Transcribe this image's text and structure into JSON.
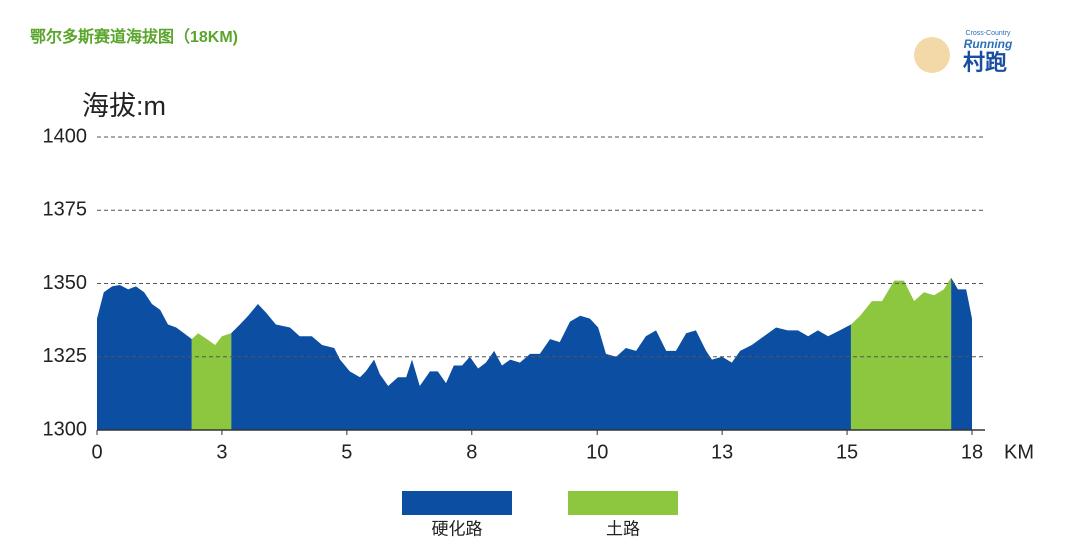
{
  "chart_data": {
    "type": "area",
    "title": "鄂尔多斯赛道海拔图（18KM)",
    "y_label": "海拔:m",
    "x_label": "KM",
    "logo": {
      "small_text": "Cross-Country",
      "brand": "Running",
      "name": "村跑"
    },
    "x": [
      0,
      0.14,
      0.31,
      0.47,
      0.64,
      0.8,
      0.97,
      1.13,
      1.3,
      1.46,
      1.63,
      1.79,
      1.95,
      2.08,
      2.26,
      2.43,
      2.57,
      2.76,
      2.94,
      3.11,
      3.31,
      3.48,
      3.68,
      3.97,
      4.17,
      4.42,
      4.63,
      4.88,
      5.0,
      5.2,
      5.41,
      5.53,
      5.7,
      5.82,
      5.99,
      6.19,
      6.36,
      6.48,
      6.64,
      6.85,
      7.01,
      7.18,
      7.34,
      7.51,
      7.67,
      7.84,
      8.0,
      8.17,
      8.33,
      8.5,
      8.7,
      8.91,
      9.11,
      9.32,
      9.52,
      9.73,
      9.94,
      10.14,
      10.31,
      10.47,
      10.68,
      10.88,
      11.09,
      11.29,
      11.5,
      11.71,
      11.91,
      12.12,
      12.32,
      12.53,
      12.65,
      12.86,
      13.06,
      13.23,
      13.47,
      13.72,
      13.97,
      14.21,
      14.42,
      14.63,
      14.83,
      15.04,
      15.28,
      15.51,
      15.7,
      15.94,
      16.15,
      16.4,
      16.6,
      16.81,
      17.01,
      17.22,
      17.42,
      17.57,
      17.71,
      17.88,
      18.0
    ],
    "series": [
      {
        "name": "硬化路",
        "color": "#0b4ea2",
        "values": [
          1338,
          1347,
          1349,
          1349.5,
          1348,
          1349,
          1347,
          1343,
          1341,
          1336,
          1335,
          1333,
          1331,
          null,
          null,
          null,
          null,
          1333,
          1336,
          1339,
          1343,
          1340,
          1336,
          1335,
          1332,
          1332,
          1329,
          1328,
          1324,
          1320,
          1318,
          1320,
          1324,
          1319,
          1315,
          1318,
          1318,
          1324,
          1315,
          1320,
          1320,
          1316,
          1322,
          1322,
          1325,
          1321,
          1323,
          1327,
          1322,
          1324,
          1323,
          1326,
          1326,
          1331,
          1330,
          1337,
          1339,
          1338,
          1335,
          1326,
          1325,
          1328,
          1327,
          1332,
          1334,
          1327,
          1327,
          1333,
          1334,
          1327,
          1324,
          1325,
          1323,
          1327,
          1329,
          1332,
          1335,
          1334,
          1334,
          1332,
          1334,
          1332,
          1334,
          1336,
          null,
          null,
          null,
          null,
          null,
          null,
          null,
          null,
          null,
          1352,
          1348,
          1348,
          1338
        ]
      },
      {
        "name": "土路",
        "color": "#8dc63f",
        "values": [
          null,
          null,
          null,
          null,
          null,
          null,
          null,
          null,
          null,
          null,
          null,
          null,
          1331,
          1333,
          1331,
          1329,
          1332,
          1333,
          null,
          null,
          null,
          null,
          null,
          null,
          null,
          null,
          null,
          null,
          null,
          null,
          null,
          null,
          null,
          null,
          null,
          null,
          null,
          null,
          null,
          null,
          null,
          null,
          null,
          null,
          null,
          null,
          null,
          null,
          null,
          null,
          null,
          null,
          null,
          null,
          null,
          null,
          null,
          null,
          null,
          null,
          null,
          null,
          null,
          null,
          null,
          null,
          null,
          null,
          null,
          null,
          null,
          null,
          null,
          null,
          null,
          null,
          null,
          null,
          null,
          null,
          null,
          null,
          null,
          1336,
          1339,
          1344,
          1344,
          1351,
          1351,
          1344,
          1347,
          1346,
          1348,
          1352,
          null,
          null,
          null
        ]
      }
    ],
    "xlim": [
      0,
      18
    ],
    "xticks": [
      0,
      {
        "value": 2.57,
        "label": "3"
      },
      {
        "value": 5.14,
        "label": "5"
      },
      {
        "value": 7.71,
        "label": "8"
      },
      {
        "value": 10.29,
        "label": "10"
      },
      {
        "value": 12.86,
        "label": "13"
      },
      {
        "value": 15.43,
        "label": "15"
      },
      18
    ],
    "ylim": [
      1300,
      1400
    ],
    "yticks": [
      1300,
      1325,
      1350,
      1375,
      1400
    ],
    "grid": true
  }
}
